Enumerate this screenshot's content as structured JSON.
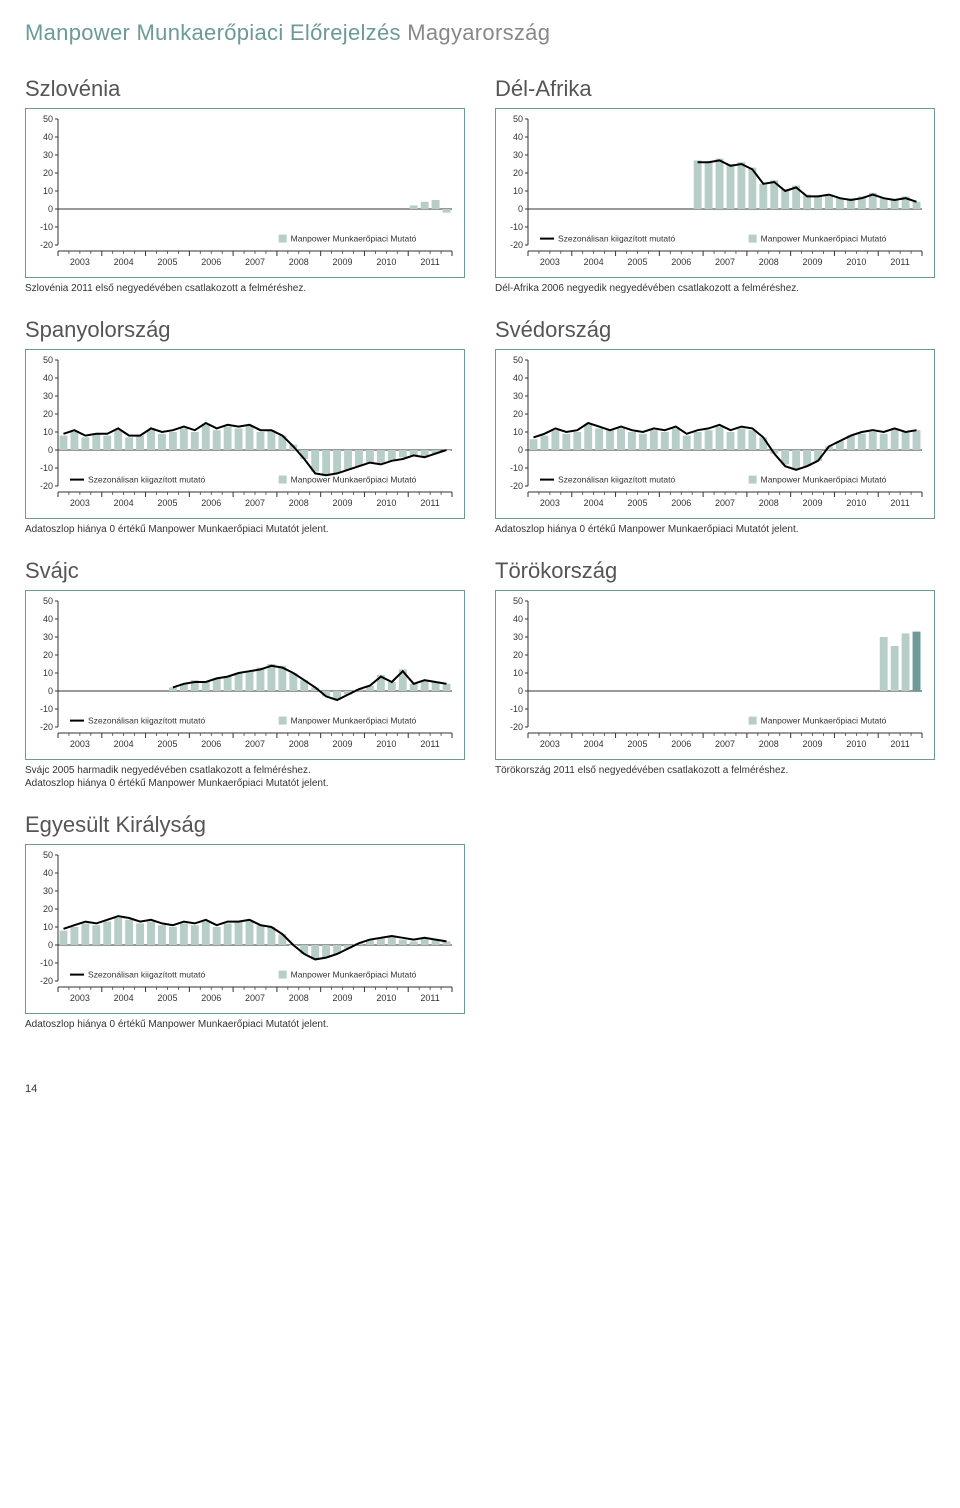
{
  "header": {
    "brand": "Manpower Munkaerőpiaci Előrejelzés",
    "country": "Magyarország"
  },
  "page_number": "14",
  "shared": {
    "ylim": [
      -20,
      50
    ],
    "yticks": [
      -20,
      -10,
      0,
      10,
      20,
      30,
      40,
      50
    ],
    "years": [
      "2003",
      "2004",
      "2005",
      "2006",
      "2007",
      "2008",
      "2009",
      "2010",
      "2011"
    ],
    "ticks_per_year": 4,
    "axis_color": "#333333",
    "tick_font_size": 9,
    "bar_color": "#b7cdc8",
    "bar_color_dark": "#6b9a98",
    "line_color": "#000000",
    "line_width": 2,
    "frame_border_color": "#6b9a98",
    "background_color": "#ffffff",
    "legend_seasonal": "Szezonálisan kiigazított mutató",
    "legend_manpower": "Manpower Munkaerőpiaci Mutató",
    "chart_title_fontsize": 22,
    "chart_title_color": "#555555",
    "note_fontsize": 10
  },
  "charts": [
    {
      "id": "szlovenia",
      "title": "Szlovénia",
      "legend": [
        "manpower_only"
      ],
      "bars": [
        null,
        null,
        null,
        null,
        null,
        null,
        null,
        null,
        null,
        null,
        null,
        null,
        null,
        null,
        null,
        null,
        null,
        null,
        null,
        null,
        null,
        null,
        null,
        null,
        null,
        null,
        null,
        null,
        null,
        null,
        null,
        null,
        2,
        4,
        5,
        -2
      ],
      "line": null,
      "note": "Szlovénia 2011 első negyedévében csatlakozott a felméréshez."
    },
    {
      "id": "del-afrika",
      "title": "Dél-Afrika",
      "legend": [
        "seasonal",
        "manpower"
      ],
      "bars": [
        null,
        null,
        null,
        null,
        null,
        null,
        null,
        null,
        null,
        null,
        null,
        null,
        null,
        null,
        null,
        27,
        26,
        28,
        25,
        26,
        23,
        14,
        16,
        11,
        13,
        8,
        7,
        8,
        6,
        6,
        7,
        9,
        6,
        5,
        7,
        4
      ],
      "line": [
        null,
        null,
        null,
        null,
        null,
        null,
        null,
        null,
        null,
        null,
        null,
        null,
        null,
        null,
        null,
        26,
        26,
        27,
        24,
        25,
        22,
        14,
        15,
        10,
        12,
        7,
        7,
        8,
        6,
        5,
        6,
        8,
        6,
        5,
        6,
        4
      ],
      "note": "Dél-Afrika 2006 negyedik negyedévében csatlakozott a felméréshez."
    },
    {
      "id": "spanyolorszag",
      "title": "Spanyolország",
      "legend": [
        "seasonal",
        "manpower"
      ],
      "bars": [
        8,
        10,
        7,
        9,
        8,
        11,
        7,
        8,
        11,
        9,
        10,
        12,
        10,
        14,
        11,
        13,
        12,
        14,
        10,
        11,
        8,
        3,
        -5,
        -12,
        -14,
        -13,
        -11,
        -9,
        -7,
        -8,
        -6,
        -4,
        -3,
        -4,
        -2,
        0
      ],
      "line": [
        9,
        11,
        8,
        9,
        9,
        12,
        8,
        8,
        12,
        10,
        11,
        13,
        11,
        15,
        12,
        14,
        13,
        14,
        11,
        11,
        8,
        2,
        -5,
        -13,
        -14,
        -13,
        -11,
        -9,
        -7,
        -8,
        -6,
        -5,
        -3,
        -4,
        -2,
        0
      ],
      "note": "Adatoszlop hiánya 0 értékű Manpower Munkaerőpiaci Mutatót jelent."
    },
    {
      "id": "svedorszag",
      "title": "Svédország",
      "legend": [
        "seasonal",
        "manpower"
      ],
      "bars": [
        6,
        8,
        11,
        9,
        10,
        14,
        12,
        11,
        12,
        10,
        9,
        11,
        10,
        12,
        8,
        10,
        11,
        13,
        10,
        12,
        11,
        7,
        -2,
        -8,
        -11,
        -9,
        -6,
        2,
        5,
        8,
        9,
        10,
        9,
        12,
        10,
        11
      ],
      "line": [
        7,
        9,
        12,
        10,
        11,
        15,
        13,
        11,
        13,
        11,
        10,
        12,
        11,
        13,
        9,
        11,
        12,
        14,
        11,
        13,
        12,
        7,
        -2,
        -9,
        -11,
        -9,
        -6,
        2,
        5,
        8,
        10,
        11,
        10,
        12,
        10,
        11
      ],
      "note": "Adatoszlop hiánya 0 értékű Manpower Munkaerőpiaci Mutatót jelent."
    },
    {
      "id": "svajc",
      "title": "Svájc",
      "legend": [
        "seasonal",
        "manpower"
      ],
      "bars": [
        null,
        null,
        null,
        null,
        null,
        null,
        null,
        null,
        null,
        null,
        2,
        4,
        6,
        5,
        7,
        8,
        10,
        11,
        13,
        15,
        14,
        10,
        6,
        2,
        -3,
        -5,
        -2,
        1,
        3,
        9,
        5,
        12,
        4,
        6,
        5,
        4
      ],
      "line": [
        null,
        null,
        null,
        null,
        null,
        null,
        null,
        null,
        null,
        null,
        2,
        4,
        5,
        5,
        7,
        8,
        10,
        11,
        12,
        14,
        13,
        10,
        6,
        2,
        -3,
        -5,
        -2,
        1,
        3,
        8,
        5,
        11,
        4,
        6,
        5,
        4
      ],
      "note": "Svájc 2005 harmadik negyedévében csatlakozott a felméréshez.\nAdatoszlop hiánya 0 értékű Manpower Munkaerőpiaci Mutatót jelent."
    },
    {
      "id": "torokorszag",
      "title": "Törökország",
      "legend": [
        "manpower_only"
      ],
      "bars": [
        null,
        null,
        null,
        null,
        null,
        null,
        null,
        null,
        null,
        null,
        null,
        null,
        null,
        null,
        null,
        null,
        null,
        null,
        null,
        null,
        null,
        null,
        null,
        null,
        null,
        null,
        null,
        null,
        null,
        null,
        null,
        null,
        30,
        25,
        32,
        33
      ],
      "bars_dark_last": true,
      "line": null,
      "note": "Törökország 2011 első negyedévében csatlakozott a felméréshez."
    },
    {
      "id": "egyesult-kiralysag",
      "title": "Egyesült Királyság",
      "legend": [
        "seasonal",
        "manpower"
      ],
      "bars": [
        8,
        10,
        12,
        11,
        13,
        15,
        14,
        12,
        13,
        11,
        10,
        12,
        11,
        13,
        10,
        12,
        13,
        14,
        11,
        10,
        6,
        0,
        -5,
        -8,
        -7,
        -5,
        -2,
        1,
        3,
        4,
        5,
        3,
        2,
        4,
        3,
        2
      ],
      "line": [
        9,
        11,
        13,
        12,
        14,
        16,
        15,
        13,
        14,
        12,
        11,
        13,
        12,
        14,
        11,
        13,
        13,
        14,
        11,
        10,
        6,
        0,
        -5,
        -8,
        -7,
        -5,
        -2,
        1,
        3,
        4,
        5,
        4,
        3,
        4,
        3,
        2
      ],
      "note": "Adatoszlop hiánya 0 értékű Manpower Munkaerőpiaci Mutatót jelent."
    }
  ]
}
